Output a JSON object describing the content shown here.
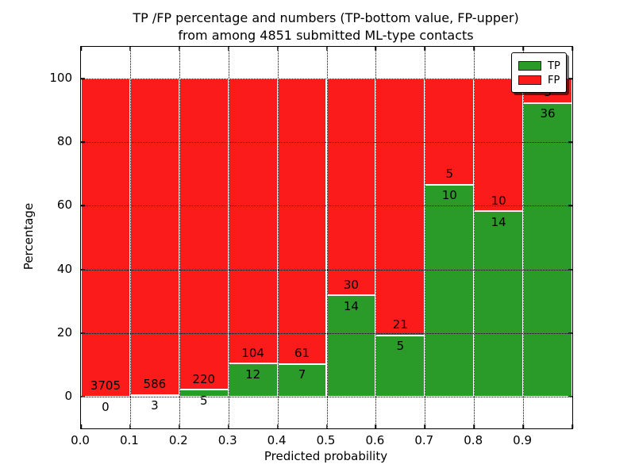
{
  "title": {
    "line1": "TP /FP percentage and numbers (TP-bottom value, FP-upper)",
    "line2": "from among 4851 submitted ML-type contacts"
  },
  "axes": {
    "xlabel": "Predicted probability",
    "ylabel": "Percentage",
    "x_tick_labels": [
      "0.0",
      "0.1",
      "0.2",
      "0.3",
      "0.4",
      "0.5",
      "0.6",
      "0.7",
      "0.8",
      "0.9"
    ],
    "y_tick_labels": [
      "0",
      "20",
      "40",
      "60",
      "80",
      "100"
    ]
  },
  "legend": {
    "items": [
      {
        "label": "TP",
        "color": "#2a9a28"
      },
      {
        "label": "FP",
        "color": "#fc1b1b"
      }
    ]
  },
  "colors": {
    "tp": "#2a9a28",
    "fp": "#fc1b1b",
    "grid": "#000000",
    "background": "#ffffff"
  },
  "chart_data": {
    "type": "bar",
    "stacked": true,
    "normalized": "each bin stacked to 100%",
    "title": "TP /FP percentage and numbers (TP-bottom value, FP-upper) from among 4851 submitted ML-type contacts",
    "xlabel": "Predicted probability",
    "ylabel": "Percentage",
    "xlim": [
      0.0,
      1.0
    ],
    "ylim": [
      -10,
      110
    ],
    "grid": "dotted",
    "legend_position": "upper right",
    "bin_width": 0.1,
    "bin_starts": [
      0.0,
      0.1,
      0.2,
      0.3,
      0.4,
      0.5,
      0.6,
      0.7,
      0.8,
      0.9
    ],
    "series": [
      {
        "name": "TP",
        "color": "#2a9a28",
        "counts": [
          0,
          3,
          5,
          12,
          7,
          14,
          5,
          10,
          14,
          36
        ],
        "percent_heights": [
          0.0,
          0.51,
          2.22,
          10.34,
          10.29,
          31.82,
          19.23,
          66.67,
          58.33,
          92.31
        ]
      },
      {
        "name": "FP",
        "color": "#fc1b1b",
        "counts": [
          3705,
          586,
          220,
          104,
          61,
          30,
          21,
          5,
          10,
          3
        ],
        "percent_heights": [
          100.0,
          99.49,
          97.78,
          89.66,
          89.71,
          68.18,
          80.77,
          33.33,
          41.67,
          7.69
        ]
      }
    ],
    "total_contacts": 4851
  }
}
